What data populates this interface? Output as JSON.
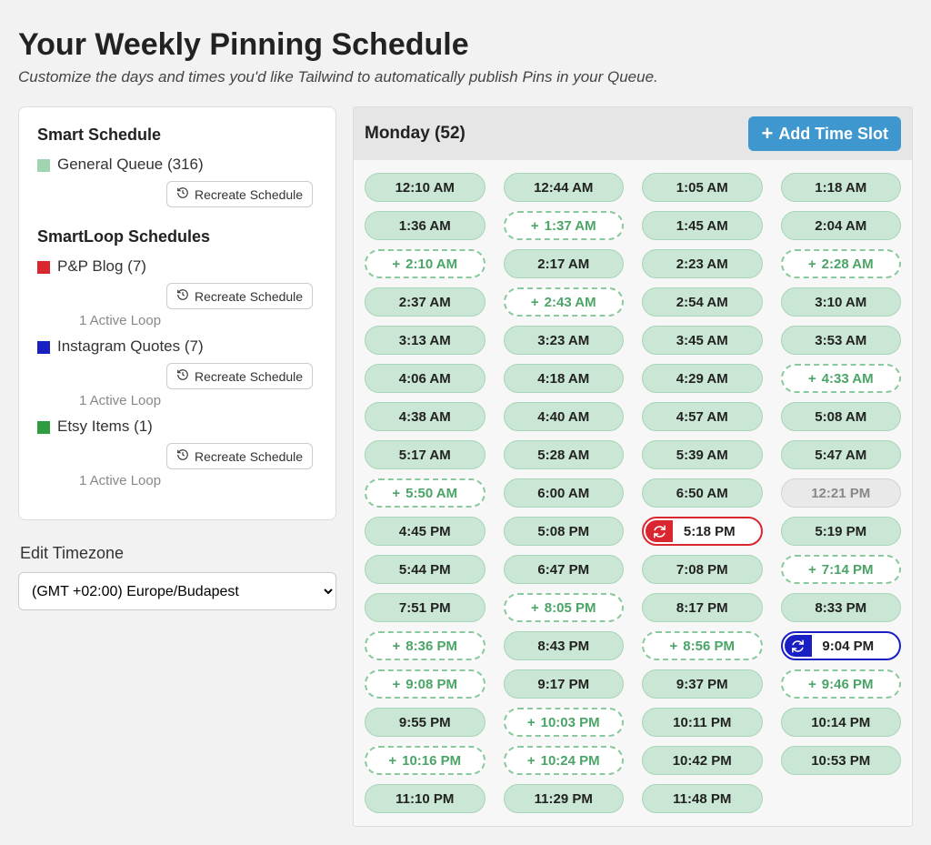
{
  "header": {
    "title": "Your Weekly Pinning Schedule",
    "subtitle": "Customize the days and times you'd like Tailwind to automatically publish Pins in your Queue."
  },
  "colors": {
    "general": "#a1d4b1",
    "pnp": "#d9262f",
    "instagram": "#1a1fc4",
    "etsy": "#2f9d3f",
    "add_button": "#3f97cf",
    "slot_bg": "#c9e7d4",
    "slot_border": "#a8d4b8",
    "suggested_border": "#8ac99e",
    "suggested_text": "#4aa567",
    "disabled_bg": "#e9e9e9"
  },
  "smart_schedule": {
    "title": "Smart Schedule",
    "queue_label": "General Queue (316)",
    "recreate_label": "Recreate Schedule"
  },
  "smartloop": {
    "title": "SmartLoop Schedules",
    "recreate_label": "Recreate Schedule",
    "active_loop_label": "1 Active Loop",
    "items": [
      {
        "label": "P&P Blog (7)",
        "color": "#d9262f"
      },
      {
        "label": "Instagram Quotes (7)",
        "color": "#1a1fc4"
      },
      {
        "label": "Etsy Items (1)",
        "color": "#2f9d3f"
      }
    ]
  },
  "timezone": {
    "label": "Edit Timezone",
    "value": "(GMT +02:00) Europe/Budapest"
  },
  "day": {
    "title": "Monday (52)",
    "add_label": "Add Time Slot"
  },
  "slots": [
    {
      "t": "12:10 AM",
      "type": "normal"
    },
    {
      "t": "12:44 AM",
      "type": "normal"
    },
    {
      "t": "1:05 AM",
      "type": "normal"
    },
    {
      "t": "1:18 AM",
      "type": "normal"
    },
    {
      "t": "1:36 AM",
      "type": "normal"
    },
    {
      "t": "1:37 AM",
      "type": "suggested"
    },
    {
      "t": "1:45 AM",
      "type": "normal"
    },
    {
      "t": "2:04 AM",
      "type": "normal"
    },
    {
      "t": "2:10 AM",
      "type": "suggested"
    },
    {
      "t": "2:17 AM",
      "type": "normal"
    },
    {
      "t": "2:23 AM",
      "type": "normal"
    },
    {
      "t": "2:28 AM",
      "type": "suggested"
    },
    {
      "t": "2:37 AM",
      "type": "normal"
    },
    {
      "t": "2:43 AM",
      "type": "suggested"
    },
    {
      "t": "2:54 AM",
      "type": "normal"
    },
    {
      "t": "3:10 AM",
      "type": "normal"
    },
    {
      "t": "3:13 AM",
      "type": "normal"
    },
    {
      "t": "3:23 AM",
      "type": "normal"
    },
    {
      "t": "3:45 AM",
      "type": "normal"
    },
    {
      "t": "3:53 AM",
      "type": "normal"
    },
    {
      "t": "4:06 AM",
      "type": "normal"
    },
    {
      "t": "4:18 AM",
      "type": "normal"
    },
    {
      "t": "4:29 AM",
      "type": "normal"
    },
    {
      "t": "4:33 AM",
      "type": "suggested"
    },
    {
      "t": "4:38 AM",
      "type": "normal"
    },
    {
      "t": "4:40 AM",
      "type": "normal"
    },
    {
      "t": "4:57 AM",
      "type": "normal"
    },
    {
      "t": "5:08 AM",
      "type": "normal"
    },
    {
      "t": "5:17 AM",
      "type": "normal"
    },
    {
      "t": "5:28 AM",
      "type": "normal"
    },
    {
      "t": "5:39 AM",
      "type": "normal"
    },
    {
      "t": "5:47 AM",
      "type": "normal"
    },
    {
      "t": "5:50 AM",
      "type": "suggested"
    },
    {
      "t": "6:00 AM",
      "type": "normal"
    },
    {
      "t": "6:50 AM",
      "type": "normal"
    },
    {
      "t": "12:21 PM",
      "type": "disabled"
    },
    {
      "t": "4:45 PM",
      "type": "normal"
    },
    {
      "t": "5:08 PM",
      "type": "normal"
    },
    {
      "t": "5:18 PM",
      "type": "loop",
      "loop": "red"
    },
    {
      "t": "5:19 PM",
      "type": "normal"
    },
    {
      "t": "5:44 PM",
      "type": "normal"
    },
    {
      "t": "6:47 PM",
      "type": "normal"
    },
    {
      "t": "7:08 PM",
      "type": "normal"
    },
    {
      "t": "7:14 PM",
      "type": "suggested"
    },
    {
      "t": "7:51 PM",
      "type": "normal"
    },
    {
      "t": "8:05 PM",
      "type": "suggested"
    },
    {
      "t": "8:17 PM",
      "type": "normal"
    },
    {
      "t": "8:33 PM",
      "type": "normal"
    },
    {
      "t": "8:36 PM",
      "type": "suggested"
    },
    {
      "t": "8:43 PM",
      "type": "normal"
    },
    {
      "t": "8:56 PM",
      "type": "suggested"
    },
    {
      "t": "9:04 PM",
      "type": "loop",
      "loop": "blue"
    },
    {
      "t": "9:08 PM",
      "type": "suggested"
    },
    {
      "t": "9:17 PM",
      "type": "normal"
    },
    {
      "t": "9:37 PM",
      "type": "normal"
    },
    {
      "t": "9:46 PM",
      "type": "suggested"
    },
    {
      "t": "9:55 PM",
      "type": "normal"
    },
    {
      "t": "10:03 PM",
      "type": "suggested"
    },
    {
      "t": "10:11 PM",
      "type": "normal"
    },
    {
      "t": "10:14 PM",
      "type": "normal"
    },
    {
      "t": "10:16 PM",
      "type": "suggested"
    },
    {
      "t": "10:24 PM",
      "type": "suggested"
    },
    {
      "t": "10:42 PM",
      "type": "normal"
    },
    {
      "t": "10:53 PM",
      "type": "normal"
    },
    {
      "t": "11:10 PM",
      "type": "normal"
    },
    {
      "t": "11:29 PM",
      "type": "normal"
    },
    {
      "t": "11:48 PM",
      "type": "normal"
    }
  ]
}
